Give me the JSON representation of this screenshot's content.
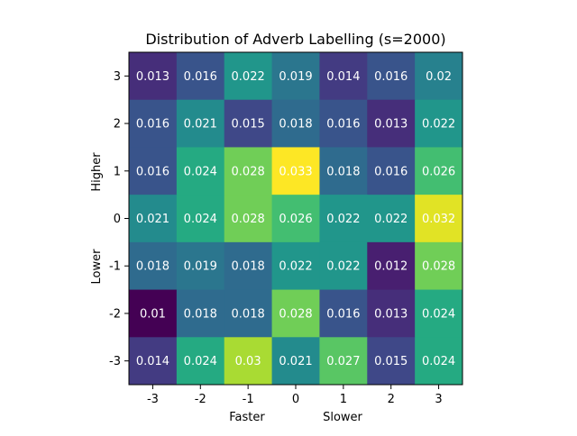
{
  "chart_data": {
    "type": "heatmap",
    "title": "Distribution of Adverb Labelling (s=2000)",
    "x_ticks": [
      "-3",
      "-2",
      "-1",
      "0",
      "1",
      "2",
      "3"
    ],
    "y_ticks": [
      "3",
      "2",
      "1",
      "0",
      "-1",
      "-2",
      "-3"
    ],
    "x_axis_labels": {
      "left": "Faster",
      "right": "Slower"
    },
    "y_axis_labels": {
      "top": "Higher",
      "bottom": "Lower"
    },
    "values": [
      [
        0.013,
        0.016,
        0.022,
        0.019,
        0.014,
        0.016,
        0.02
      ],
      [
        0.016,
        0.021,
        0.015,
        0.018,
        0.016,
        0.013,
        0.022
      ],
      [
        0.016,
        0.024,
        0.028,
        0.033,
        0.018,
        0.016,
        0.026
      ],
      [
        0.021,
        0.024,
        0.028,
        0.026,
        0.022,
        0.022,
        0.032
      ],
      [
        0.018,
        0.019,
        0.018,
        0.022,
        0.022,
        0.012,
        0.028
      ],
      [
        0.01,
        0.018,
        0.018,
        0.028,
        0.016,
        0.013,
        0.024
      ],
      [
        0.014,
        0.024,
        0.03,
        0.021,
        0.027,
        0.015,
        0.024
      ]
    ],
    "value_labels": [
      [
        "0.013",
        "0.016",
        "0.022",
        "0.019",
        "0.014",
        "0.016",
        "0.02"
      ],
      [
        "0.016",
        "0.021",
        "0.015",
        "0.018",
        "0.016",
        "0.013",
        "0.022"
      ],
      [
        "0.016",
        "0.024",
        "0.028",
        "0.033",
        "0.018",
        "0.016",
        "0.026"
      ],
      [
        "0.021",
        "0.024",
        "0.028",
        "0.026",
        "0.022",
        "0.022",
        "0.032"
      ],
      [
        "0.018",
        "0.019",
        "0.018",
        "0.022",
        "0.022",
        "0.012",
        "0.028"
      ],
      [
        "0.01",
        "0.018",
        "0.018",
        "0.028",
        "0.016",
        "0.013",
        "0.024"
      ],
      [
        "0.014",
        "0.024",
        "0.03",
        "0.021",
        "0.027",
        "0.015",
        "0.024"
      ]
    ],
    "colormap": "viridis",
    "value_range": [
      0.01,
      0.033
    ],
    "grid": false,
    "label_color": "#ffffff"
  }
}
